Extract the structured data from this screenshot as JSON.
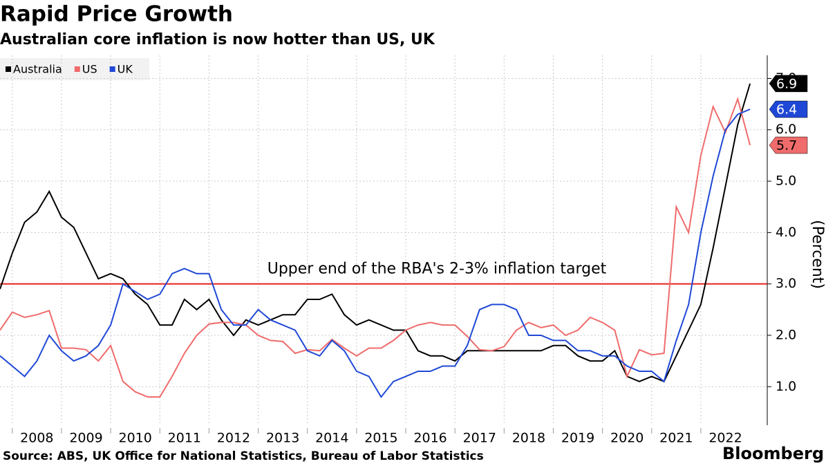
{
  "chart_data": {
    "type": "line",
    "title": "Rapid Price Growth",
    "subtitle": "Australian core inflation is now hotter than US, UK",
    "y_label": "(Percent)",
    "source": "Source: ABS, UK Office for National Statistics, Bureau of Labor Statistics",
    "brand": "Bloomberg",
    "legend": "top-left",
    "grid": true,
    "x": [
      2007.75,
      2008,
      2008.25,
      2008.5,
      2008.75,
      2009,
      2009.25,
      2009.5,
      2009.75,
      2010,
      2010.25,
      2010.5,
      2010.75,
      2011,
      2011.25,
      2011.5,
      2011.75,
      2012,
      2012.25,
      2012.5,
      2012.75,
      2013,
      2013.25,
      2013.5,
      2013.75,
      2014,
      2014.25,
      2014.5,
      2014.75,
      2015,
      2015.25,
      2015.5,
      2015.75,
      2016,
      2016.25,
      2016.5,
      2016.75,
      2017,
      2017.25,
      2017.5,
      2017.75,
      2018,
      2018.25,
      2018.5,
      2018.75,
      2019,
      2019.25,
      2019.5,
      2019.75,
      2020,
      2020.25,
      2020.5,
      2020.75,
      2021,
      2021.25,
      2021.5,
      2021.75,
      2022,
      2022.25,
      2022.5,
      2022.75,
      2023
    ],
    "xlim": [
      2007.75,
      2023.35
    ],
    "xticks": [
      {
        "value": 2008,
        "label": "2008"
      },
      {
        "value": 2009,
        "label": "2009"
      },
      {
        "value": 2010,
        "label": "2010"
      },
      {
        "value": 2011,
        "label": "2011"
      },
      {
        "value": 2012,
        "label": "2012"
      },
      {
        "value": 2013,
        "label": "2013"
      },
      {
        "value": 2014,
        "label": "2014"
      },
      {
        "value": 2015,
        "label": "2015"
      },
      {
        "value": 2016,
        "label": "2016"
      },
      {
        "value": 2017,
        "label": "2017"
      },
      {
        "value": 2018,
        "label": "2018"
      },
      {
        "value": 2019,
        "label": "2019"
      },
      {
        "value": 2020,
        "label": "2020"
      },
      {
        "value": 2021,
        "label": "2021"
      },
      {
        "value": 2022,
        "label": "2022"
      }
    ],
    "ylim": [
      0.25,
      7.45
    ],
    "yticks": [
      {
        "value": 1,
        "label": "1.0"
      },
      {
        "value": 2,
        "label": "2.0"
      },
      {
        "value": 3,
        "label": "3.0"
      },
      {
        "value": 4,
        "label": "4.0"
      },
      {
        "value": 5,
        "label": "5.0"
      },
      {
        "value": 6,
        "label": "6.0"
      },
      {
        "value": 7,
        "label": "7.0"
      }
    ],
    "annotations": [
      {
        "text": "Upper end of the RBA's 2-3% inflation target",
        "y": 3,
        "color": "#e8201e"
      }
    ],
    "series": [
      {
        "name": "Australia",
        "color": "#000000",
        "text_color": "#ffffff",
        "values": [
          2.9,
          3.6,
          4.2,
          4.4,
          4.8,
          4.3,
          4.1,
          3.6,
          3.1,
          3.2,
          3.1,
          2.8,
          2.6,
          2.2,
          2.2,
          2.7,
          2.5,
          2.7,
          2.3,
          2.0,
          2.3,
          2.2,
          2.3,
          2.4,
          2.4,
          2.7,
          2.7,
          2.8,
          2.4,
          2.2,
          2.3,
          2.2,
          2.1,
          2.1,
          1.7,
          1.6,
          1.6,
          1.5,
          1.7,
          1.7,
          1.7,
          1.7,
          1.7,
          1.7,
          1.7,
          1.8,
          1.8,
          1.6,
          1.5,
          1.5,
          1.7,
          1.2,
          1.1,
          1.2,
          1.1,
          1.6,
          2.1,
          2.6,
          3.7,
          4.9,
          6.1,
          6.9
        ]
      },
      {
        "name": "US",
        "color": "#f06b6b",
        "text_color": "#000000",
        "values": [
          2.1,
          2.45,
          2.35,
          2.4,
          2.48,
          1.75,
          1.75,
          1.72,
          1.5,
          1.8,
          1.1,
          0.9,
          0.8,
          0.8,
          1.2,
          1.65,
          2.0,
          2.22,
          2.25,
          2.25,
          2.2,
          2.0,
          1.9,
          1.88,
          1.65,
          1.72,
          1.7,
          1.92,
          1.75,
          1.6,
          1.75,
          1.75,
          1.9,
          2.1,
          2.2,
          2.25,
          2.2,
          2.2,
          1.98,
          1.72,
          1.7,
          1.78,
          2.1,
          2.25,
          2.15,
          2.2,
          2.0,
          2.1,
          2.35,
          2.25,
          2.1,
          1.2,
          1.72,
          1.62,
          1.65,
          4.5,
          4.0,
          5.5,
          6.45,
          5.95,
          6.6,
          5.7
        ]
      },
      {
        "name": "UK",
        "color": "#1f48d6",
        "text_color": "#ffffff",
        "values": [
          1.6,
          1.4,
          1.2,
          1.5,
          2.0,
          1.7,
          1.5,
          1.6,
          1.8,
          2.2,
          3.0,
          2.85,
          2.7,
          2.8,
          3.2,
          3.3,
          3.2,
          3.2,
          2.5,
          2.2,
          2.2,
          2.5,
          2.3,
          2.2,
          2.1,
          1.7,
          1.6,
          1.9,
          1.7,
          1.3,
          1.2,
          0.8,
          1.1,
          1.2,
          1.3,
          1.3,
          1.4,
          1.4,
          1.8,
          2.5,
          2.6,
          2.6,
          2.5,
          2.0,
          2.0,
          1.9,
          1.9,
          1.7,
          1.7,
          1.6,
          1.6,
          1.4,
          1.3,
          1.3,
          1.1,
          1.9,
          2.6,
          4.0,
          5.1,
          6.0,
          6.3,
          6.4
        ]
      }
    ]
  }
}
